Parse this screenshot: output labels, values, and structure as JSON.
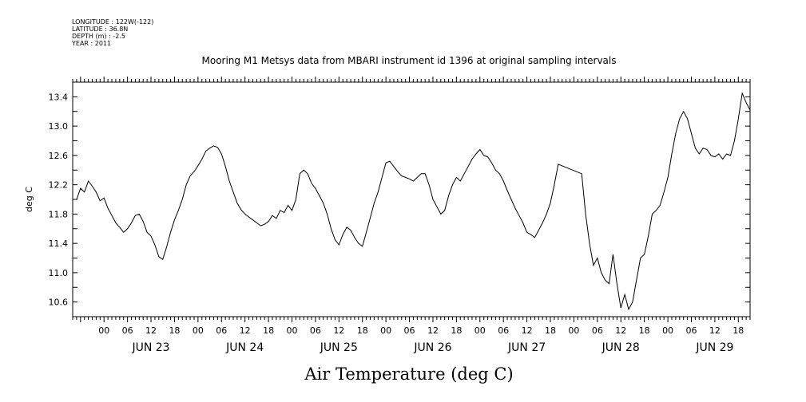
{
  "header": {
    "lines": [
      "LONGITUDE : 122W(-122)",
      "LATITUDE : 36.8N",
      "DEPTH (m) : -2.5",
      "YEAR : 2011"
    ]
  },
  "chart_data": {
    "type": "line",
    "title": "Mooring M1 Metsys data from MBARI instrument id 1396 at original sampling intervals",
    "xlabel": "Air Temperature (deg C)",
    "ylabel": "deg C",
    "xlim": [
      "2011-06-22T16:00",
      "2011-06-29T21:00"
    ],
    "ylim": [
      10.4,
      13.6
    ],
    "y_ticks": [
      10.6,
      11.0,
      11.4,
      11.8,
      12.2,
      12.6,
      13.0,
      13.4
    ],
    "x_hour_ticks": [
      {
        "t": "2011-06-23T00:00",
        "label": "00"
      },
      {
        "t": "2011-06-23T06:00",
        "label": "06"
      },
      {
        "t": "2011-06-23T12:00",
        "label": "12"
      },
      {
        "t": "2011-06-23T18:00",
        "label": "18"
      },
      {
        "t": "2011-06-24T00:00",
        "label": "00"
      },
      {
        "t": "2011-06-24T06:00",
        "label": "06"
      },
      {
        "t": "2011-06-24T12:00",
        "label": "12"
      },
      {
        "t": "2011-06-24T18:00",
        "label": "18"
      },
      {
        "t": "2011-06-25T00:00",
        "label": "00"
      },
      {
        "t": "2011-06-25T06:00",
        "label": "06"
      },
      {
        "t": "2011-06-25T12:00",
        "label": "12"
      },
      {
        "t": "2011-06-25T18:00",
        "label": "18"
      },
      {
        "t": "2011-06-26T00:00",
        "label": "00"
      },
      {
        "t": "2011-06-26T06:00",
        "label": "06"
      },
      {
        "t": "2011-06-26T12:00",
        "label": "12"
      },
      {
        "t": "2011-06-26T18:00",
        "label": "18"
      },
      {
        "t": "2011-06-27T00:00",
        "label": "00"
      },
      {
        "t": "2011-06-27T06:00",
        "label": "06"
      },
      {
        "t": "2011-06-27T12:00",
        "label": "12"
      },
      {
        "t": "2011-06-27T18:00",
        "label": "18"
      },
      {
        "t": "2011-06-28T00:00",
        "label": "00"
      },
      {
        "t": "2011-06-28T06:00",
        "label": "06"
      },
      {
        "t": "2011-06-28T12:00",
        "label": "12"
      },
      {
        "t": "2011-06-28T18:00",
        "label": "18"
      },
      {
        "t": "2011-06-29T00:00",
        "label": "00"
      },
      {
        "t": "2011-06-29T06:00",
        "label": "06"
      },
      {
        "t": "2011-06-29T12:00",
        "label": "12"
      },
      {
        "t": "2011-06-29T18:00",
        "label": "18"
      }
    ],
    "day_labels": [
      {
        "t": "2011-06-23T12:00",
        "label": "JUN 23"
      },
      {
        "t": "2011-06-24T12:00",
        "label": "JUN 24"
      },
      {
        "t": "2011-06-25T12:00",
        "label": "JUN 25"
      },
      {
        "t": "2011-06-26T12:00",
        "label": "JUN 26"
      },
      {
        "t": "2011-06-27T12:00",
        "label": "JUN 27"
      },
      {
        "t": "2011-06-28T12:00",
        "label": "JUN 28"
      },
      {
        "t": "2011-06-29T12:00",
        "label": "JUN 29"
      }
    ],
    "grid": false,
    "series": [
      {
        "values": [
          [
            "2011-06-22T17:00",
            12.0
          ],
          [
            "2011-06-22T18:00",
            12.15
          ],
          [
            "2011-06-22T19:00",
            12.1
          ],
          [
            "2011-06-22T20:00",
            12.25
          ],
          [
            "2011-06-22T21:00",
            12.18
          ],
          [
            "2011-06-22T22:00",
            12.1
          ],
          [
            "2011-06-22T23:00",
            11.98
          ],
          [
            "2011-06-23T00:00",
            12.02
          ],
          [
            "2011-06-23T01:00",
            11.88
          ],
          [
            "2011-06-23T02:00",
            11.78
          ],
          [
            "2011-06-23T03:00",
            11.68
          ],
          [
            "2011-06-23T04:00",
            11.62
          ],
          [
            "2011-06-23T05:00",
            11.55
          ],
          [
            "2011-06-23T06:00",
            11.6
          ],
          [
            "2011-06-23T07:00",
            11.68
          ],
          [
            "2011-06-23T08:00",
            11.78
          ],
          [
            "2011-06-23T09:00",
            11.8
          ],
          [
            "2011-06-23T10:00",
            11.7
          ],
          [
            "2011-06-23T11:00",
            11.55
          ],
          [
            "2011-06-23T12:00",
            11.5
          ],
          [
            "2011-06-23T13:00",
            11.38
          ],
          [
            "2011-06-23T14:00",
            11.22
          ],
          [
            "2011-06-23T15:00",
            11.18
          ],
          [
            "2011-06-23T16:00",
            11.35
          ],
          [
            "2011-06-23T17:00",
            11.55
          ],
          [
            "2011-06-23T18:00",
            11.72
          ],
          [
            "2011-06-23T19:00",
            11.85
          ],
          [
            "2011-06-23T20:00",
            12.0
          ],
          [
            "2011-06-23T21:00",
            12.2
          ],
          [
            "2011-06-23T22:00",
            12.32
          ],
          [
            "2011-06-23T23:00",
            12.38
          ],
          [
            "2011-06-24T00:00",
            12.46
          ],
          [
            "2011-06-24T01:00",
            12.55
          ],
          [
            "2011-06-24T02:00",
            12.66
          ],
          [
            "2011-06-24T03:00",
            12.7
          ],
          [
            "2011-06-24T04:00",
            12.73
          ],
          [
            "2011-06-24T05:00",
            12.71
          ],
          [
            "2011-06-24T06:00",
            12.62
          ],
          [
            "2011-06-24T07:00",
            12.45
          ],
          [
            "2011-06-24T08:00",
            12.25
          ],
          [
            "2011-06-24T09:00",
            12.1
          ],
          [
            "2011-06-24T10:00",
            11.95
          ],
          [
            "2011-06-24T11:00",
            11.86
          ],
          [
            "2011-06-24T12:00",
            11.8
          ],
          [
            "2011-06-24T13:00",
            11.76
          ],
          [
            "2011-06-24T14:00",
            11.72
          ],
          [
            "2011-06-24T15:00",
            11.68
          ],
          [
            "2011-06-24T16:00",
            11.64
          ],
          [
            "2011-06-24T17:00",
            11.66
          ],
          [
            "2011-06-24T18:00",
            11.7
          ],
          [
            "2011-06-24T19:00",
            11.78
          ],
          [
            "2011-06-24T20:00",
            11.74
          ],
          [
            "2011-06-24T21:00",
            11.85
          ],
          [
            "2011-06-24T22:00",
            11.82
          ],
          [
            "2011-06-24T23:00",
            11.92
          ],
          [
            "2011-06-25T00:00",
            11.85
          ],
          [
            "2011-06-25T01:00",
            12.0
          ],
          [
            "2011-06-25T02:00",
            12.35
          ],
          [
            "2011-06-25T03:00",
            12.4
          ],
          [
            "2011-06-25T04:00",
            12.35
          ],
          [
            "2011-06-25T05:00",
            12.22
          ],
          [
            "2011-06-25T06:00",
            12.15
          ],
          [
            "2011-06-25T07:00",
            12.05
          ],
          [
            "2011-06-25T08:00",
            11.95
          ],
          [
            "2011-06-25T09:00",
            11.8
          ],
          [
            "2011-06-25T10:00",
            11.6
          ],
          [
            "2011-06-25T11:00",
            11.45
          ],
          [
            "2011-06-25T12:00",
            11.38
          ],
          [
            "2011-06-25T13:00",
            11.52
          ],
          [
            "2011-06-25T14:00",
            11.62
          ],
          [
            "2011-06-25T15:00",
            11.58
          ],
          [
            "2011-06-25T16:00",
            11.48
          ],
          [
            "2011-06-25T17:00",
            11.4
          ],
          [
            "2011-06-25T18:00",
            11.36
          ],
          [
            "2011-06-25T19:00",
            11.55
          ],
          [
            "2011-06-25T20:00",
            11.75
          ],
          [
            "2011-06-25T21:00",
            11.95
          ],
          [
            "2011-06-25T22:00",
            12.1
          ],
          [
            "2011-06-25T23:00",
            12.3
          ],
          [
            "2011-06-26T00:00",
            12.5
          ],
          [
            "2011-06-26T01:00",
            12.52
          ],
          [
            "2011-06-26T02:00",
            12.45
          ],
          [
            "2011-06-26T03:00",
            12.38
          ],
          [
            "2011-06-26T04:00",
            12.32
          ],
          [
            "2011-06-26T05:00",
            12.3
          ],
          [
            "2011-06-26T06:00",
            12.28
          ],
          [
            "2011-06-26T07:00",
            12.25
          ],
          [
            "2011-06-26T08:00",
            12.3
          ],
          [
            "2011-06-26T09:00",
            12.35
          ],
          [
            "2011-06-26T10:00",
            12.35
          ],
          [
            "2011-06-26T11:00",
            12.2
          ],
          [
            "2011-06-26T12:00",
            12.0
          ],
          [
            "2011-06-26T13:00",
            11.9
          ],
          [
            "2011-06-26T14:00",
            11.8
          ],
          [
            "2011-06-26T15:00",
            11.85
          ],
          [
            "2011-06-26T16:00",
            12.05
          ],
          [
            "2011-06-26T17:00",
            12.2
          ],
          [
            "2011-06-26T18:00",
            12.3
          ],
          [
            "2011-06-26T19:00",
            12.25
          ],
          [
            "2011-06-26T20:00",
            12.35
          ],
          [
            "2011-06-26T21:00",
            12.45
          ],
          [
            "2011-06-26T22:00",
            12.55
          ],
          [
            "2011-06-26T23:00",
            12.62
          ],
          [
            "2011-06-27T00:00",
            12.68
          ],
          [
            "2011-06-27T01:00",
            12.6
          ],
          [
            "2011-06-27T02:00",
            12.58
          ],
          [
            "2011-06-27T03:00",
            12.5
          ],
          [
            "2011-06-27T04:00",
            12.4
          ],
          [
            "2011-06-27T05:00",
            12.35
          ],
          [
            "2011-06-27T06:00",
            12.25
          ],
          [
            "2011-06-27T07:00",
            12.12
          ],
          [
            "2011-06-27T08:00",
            12.0
          ],
          [
            "2011-06-27T09:00",
            11.88
          ],
          [
            "2011-06-27T10:00",
            11.78
          ],
          [
            "2011-06-27T11:00",
            11.68
          ],
          [
            "2011-06-27T12:00",
            11.55
          ],
          [
            "2011-06-27T13:00",
            11.52
          ],
          [
            "2011-06-27T14:00",
            11.48
          ],
          [
            "2011-06-27T15:00",
            11.58
          ],
          [
            "2011-06-27T16:00",
            11.68
          ],
          [
            "2011-06-27T17:00",
            11.8
          ],
          [
            "2011-06-27T18:00",
            11.95
          ],
          [
            "2011-06-27T19:00",
            12.2
          ],
          [
            "2011-06-27T20:00",
            12.48
          ],
          [
            "2011-06-28T02:00",
            12.35
          ],
          [
            "2011-06-28T03:00",
            11.8
          ],
          [
            "2011-06-28T04:00",
            11.4
          ],
          [
            "2011-06-28T05:00",
            11.1
          ],
          [
            "2011-06-28T06:00",
            11.2
          ],
          [
            "2011-06-28T07:00",
            11.0
          ],
          [
            "2011-06-28T08:00",
            10.9
          ],
          [
            "2011-06-28T09:00",
            10.85
          ],
          [
            "2011-06-28T10:00",
            11.25
          ],
          [
            "2011-06-28T11:00",
            10.85
          ],
          [
            "2011-06-28T12:00",
            10.52
          ],
          [
            "2011-06-28T13:00",
            10.7
          ],
          [
            "2011-06-28T14:00",
            10.5
          ],
          [
            "2011-06-28T15:00",
            10.6
          ],
          [
            "2011-06-28T16:00",
            10.9
          ],
          [
            "2011-06-28T17:00",
            11.2
          ],
          [
            "2011-06-28T18:00",
            11.25
          ],
          [
            "2011-06-28T19:00",
            11.5
          ],
          [
            "2011-06-28T20:00",
            11.8
          ],
          [
            "2011-06-28T21:00",
            11.85
          ],
          [
            "2011-06-28T22:00",
            11.92
          ],
          [
            "2011-06-28T23:00",
            12.1
          ],
          [
            "2011-06-29T00:00",
            12.3
          ],
          [
            "2011-06-29T01:00",
            12.62
          ],
          [
            "2011-06-29T02:00",
            12.9
          ],
          [
            "2011-06-29T03:00",
            13.1
          ],
          [
            "2011-06-29T04:00",
            13.2
          ],
          [
            "2011-06-29T05:00",
            13.1
          ],
          [
            "2011-06-29T06:00",
            12.9
          ],
          [
            "2011-06-29T07:00",
            12.7
          ],
          [
            "2011-06-29T08:00",
            12.62
          ],
          [
            "2011-06-29T09:00",
            12.7
          ],
          [
            "2011-06-29T10:00",
            12.68
          ],
          [
            "2011-06-29T11:00",
            12.6
          ],
          [
            "2011-06-29T12:00",
            12.58
          ],
          [
            "2011-06-29T13:00",
            12.62
          ],
          [
            "2011-06-29T14:00",
            12.55
          ],
          [
            "2011-06-29T15:00",
            12.62
          ],
          [
            "2011-06-29T16:00",
            12.6
          ],
          [
            "2011-06-29T17:00",
            12.8
          ],
          [
            "2011-06-29T18:00",
            13.1
          ],
          [
            "2011-06-29T19:00",
            13.45
          ],
          [
            "2011-06-29T20:00",
            13.32
          ],
          [
            "2011-06-29T21:00",
            13.22
          ]
        ]
      }
    ]
  }
}
